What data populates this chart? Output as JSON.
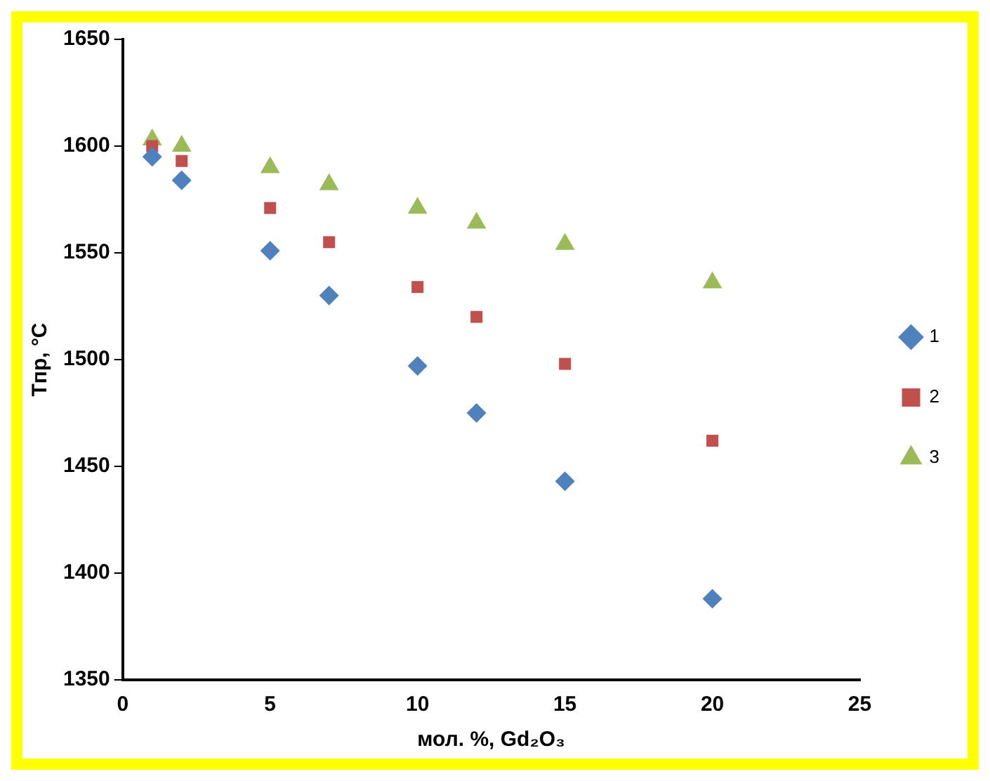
{
  "chart_data": {
    "type": "scatter",
    "xlabel": "мол. %, Gd₂O₃",
    "ylabel": "Tпр, °C",
    "xlim": [
      0,
      25
    ],
    "xticks": [
      0,
      5,
      10,
      15,
      20,
      25
    ],
    "ylim": [
      1350,
      1650
    ],
    "yticks": [
      1350,
      1400,
      1450,
      1500,
      1550,
      1600,
      1650
    ],
    "grid": false,
    "legend": "right",
    "series": [
      {
        "name": "1",
        "color": "#4f81bd",
        "marker": "diamond",
        "x": [
          1,
          2,
          5,
          7,
          10,
          12,
          15,
          20
        ],
        "values": [
          1595,
          1584,
          1551,
          1530,
          1497,
          1475,
          1443,
          1388
        ]
      },
      {
        "name": "2",
        "color": "#c0504d",
        "marker": "square",
        "x": [
          1,
          2,
          5,
          7,
          10,
          12,
          15,
          20
        ],
        "values": [
          1600,
          1593,
          1571,
          1555,
          1534,
          1520,
          1498,
          1462
        ]
      },
      {
        "name": "3",
        "color": "#9bbb59",
        "marker": "triangle",
        "x": [
          1,
          2,
          5,
          7,
          10,
          12,
          15,
          20
        ],
        "values": [
          1603,
          1600,
          1590,
          1582,
          1571,
          1564,
          1554,
          1536
        ]
      }
    ]
  }
}
